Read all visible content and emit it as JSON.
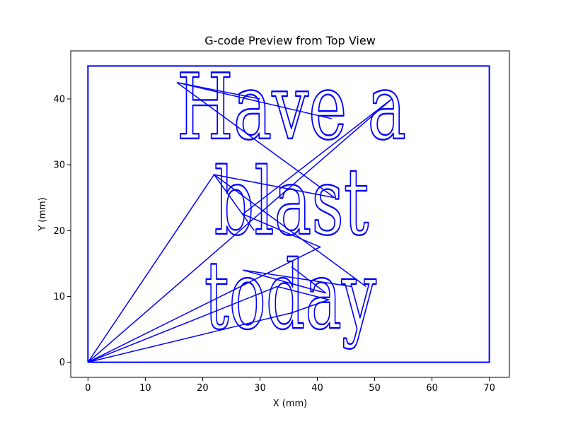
{
  "chart_data": {
    "type": "line",
    "title": "G-code Preview from Top View",
    "xlabel": "X (mm)",
    "ylabel": "Y (mm)",
    "xlim": [
      -3,
      73.5
    ],
    "ylim": [
      -2.3,
      47.3
    ],
    "xticks": [
      0,
      10,
      20,
      30,
      40,
      50,
      60,
      70
    ],
    "yticks": [
      0,
      10,
      20,
      30,
      40
    ],
    "grid": false,
    "line_color": "#0000ff",
    "series": [
      {
        "name": "",
        "x": [
          0,
          0,
          70,
          70,
          0
        ],
        "y": [
          0,
          45,
          45,
          0,
          0
        ]
      }
    ],
    "text_paths": [
      {
        "text": "Have a",
        "x": 15.5,
        "y": 34,
        "size_mm": 10.2,
        "width_mm": 40
      },
      {
        "text": "blast",
        "x": 22.0,
        "y": 19.5,
        "size_mm": 10.4,
        "width_mm": 27
      },
      {
        "text": "today",
        "x": 20.3,
        "y": 5.2,
        "size_mm": 10.6,
        "width_mm": 30
      }
    ],
    "travel_moves": [
      {
        "x": [
          15.5,
          30.0,
          15.5,
          42.5,
          15.5
        ],
        "y": [
          42.5,
          40.0,
          42.5,
          37.0,
          42.5
        ]
      },
      {
        "x": [
          15.5,
          43.0,
          22.0,
          29.0,
          22.0,
          48.5,
          22.0
        ],
        "y": [
          42.5,
          25.0,
          28.5,
          20.0,
          28.5,
          11.5,
          28.5
        ]
      },
      {
        "x": [
          22.0,
          0
        ],
        "y": [
          28.5,
          0
        ]
      },
      {
        "x": [
          0,
          53.0,
          27.0,
          40.5,
          0
        ],
        "y": [
          0,
          40.0,
          22.5,
          17.5,
          0
        ]
      },
      {
        "x": [
          0,
          33.0,
          42.0,
          35.5,
          0
        ],
        "y": [
          0,
          11.5,
          9.5,
          7.5,
          0
        ]
      },
      {
        "x": [
          35.5,
          41.5,
          27.0,
          46.0
        ],
        "y": [
          14.5,
          10.5,
          14.0,
          11.5
        ]
      }
    ]
  }
}
